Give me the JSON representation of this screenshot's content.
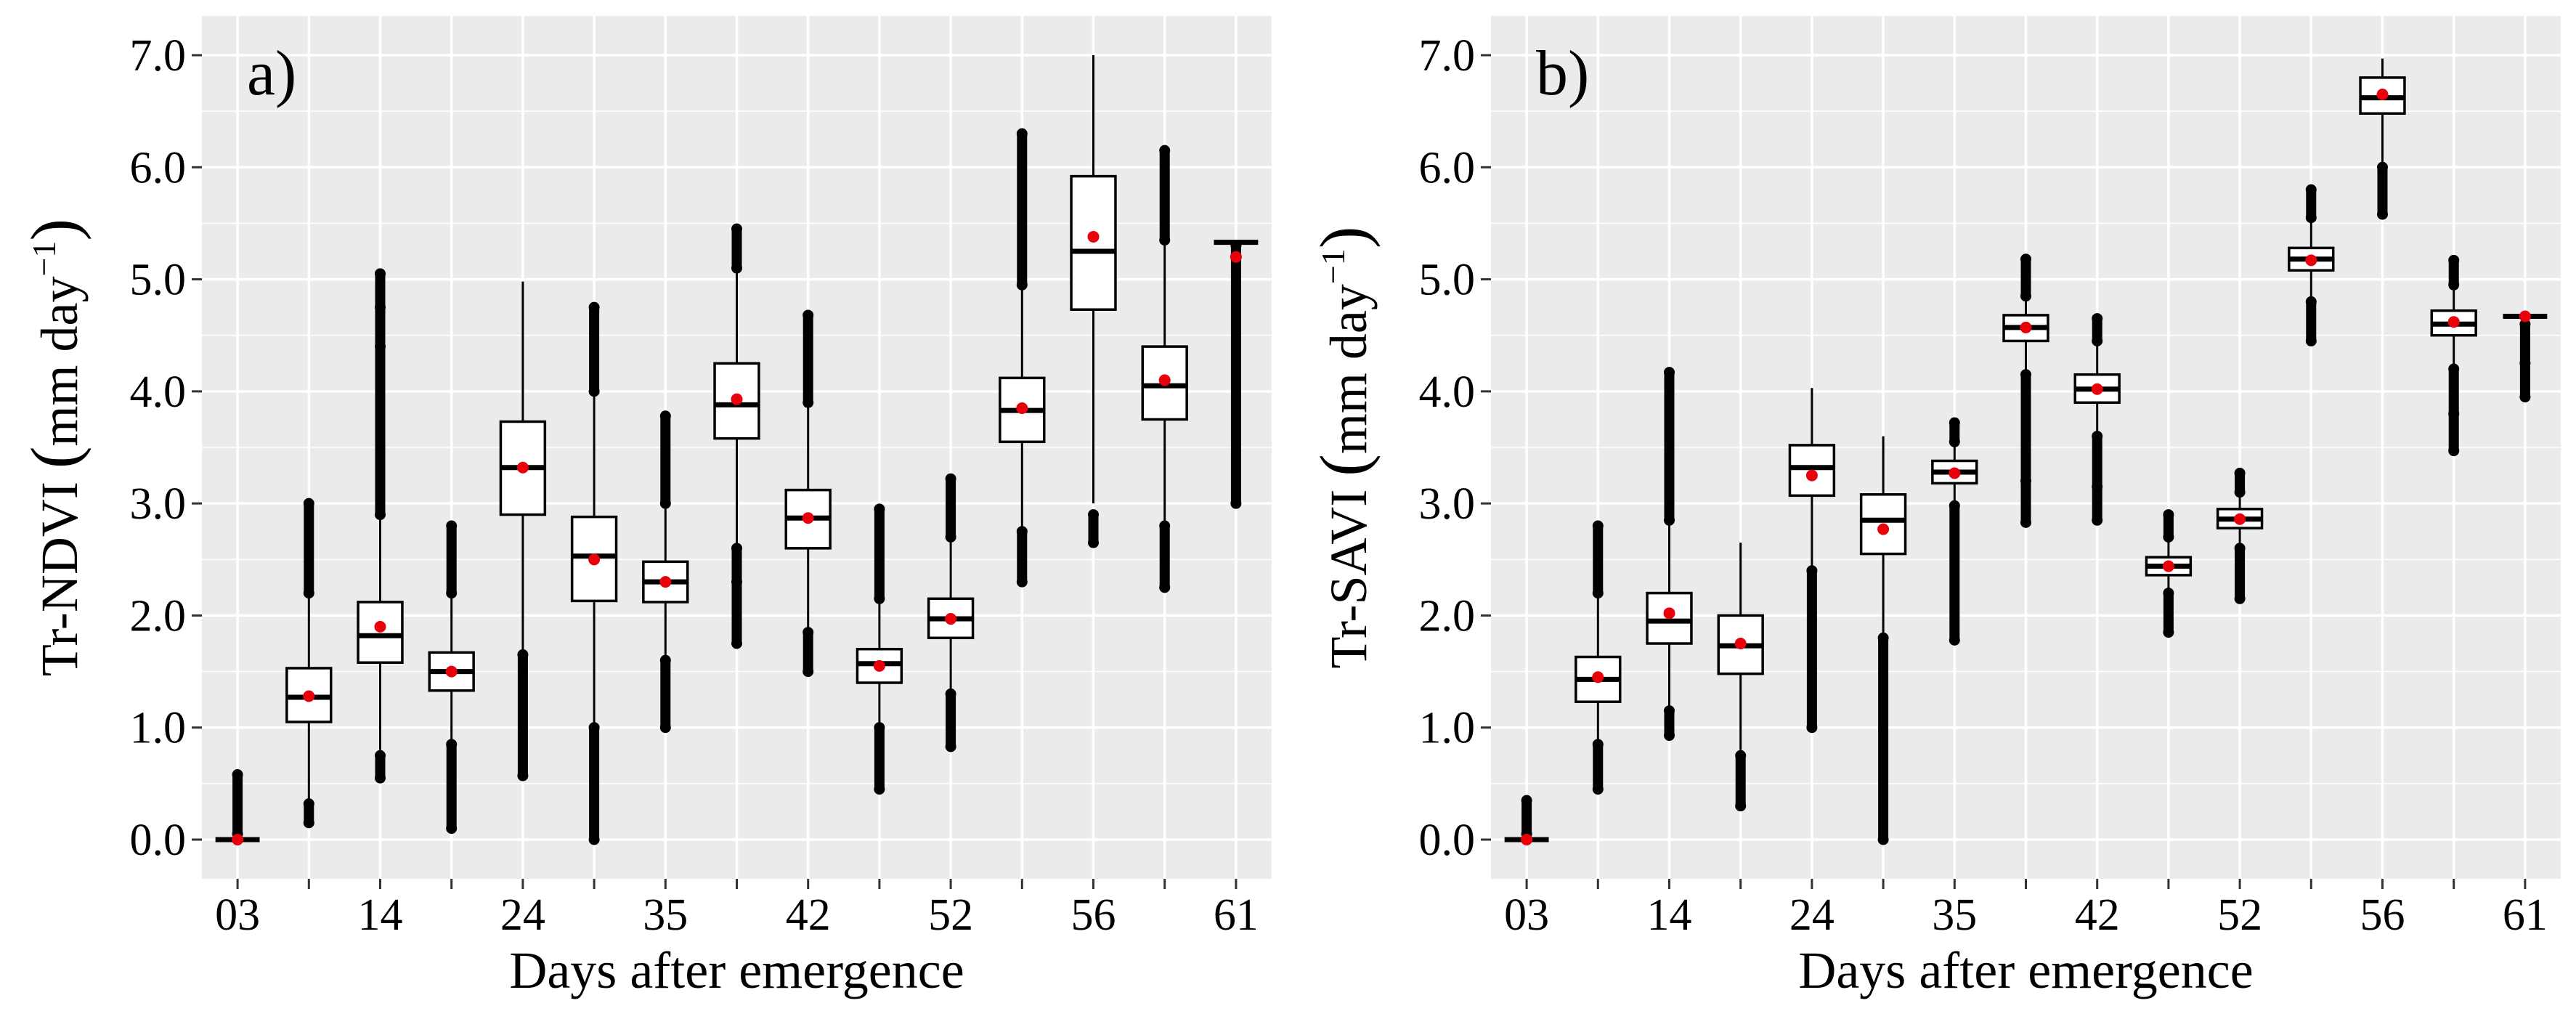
{
  "chart_data": [
    {
      "type": "box",
      "panel_label": "a)",
      "ylabel_main": "Tr-NDVI",
      "ylabel_paren_open": "(",
      "ylabel_unit_prefix": "mm day",
      "ylabel_exponent": "−1",
      "ylabel_paren_close": ")",
      "xlabel": "Days after emergence",
      "ylim": [
        -0.35,
        7.35
      ],
      "y_ticks": [
        0,
        1,
        2,
        3,
        4,
        5,
        6,
        7
      ],
      "y_tick_labels": [
        "0.0",
        "1.0",
        "2.0",
        "3.0",
        "4.0",
        "5.0",
        "6.0",
        "7.0"
      ],
      "x_tick_labels": [
        "03",
        "",
        "14",
        "",
        "24",
        "",
        "35",
        "",
        "42",
        "",
        "52",
        "",
        "56",
        "",
        "61"
      ],
      "grid": true,
      "boxes": [
        {
          "q1": 0.0,
          "median": 0.0,
          "q3": 0.0,
          "whisker_low": 0.0,
          "whisker_high": 0.0,
          "mean": 0.0,
          "outliers_low": [],
          "outliers_high": [
            0.05,
            0.58
          ]
        },
        {
          "q1": 1.05,
          "median": 1.27,
          "q3": 1.53,
          "whisker_low": 0.35,
          "whisker_high": 2.2,
          "mean": 1.28,
          "outliers_low": [
            0.15,
            0.32
          ],
          "outliers_high": [
            2.2,
            3.0
          ]
        },
        {
          "q1": 1.58,
          "median": 1.82,
          "q3": 2.12,
          "whisker_low": 0.8,
          "whisker_high": 2.9,
          "mean": 1.9,
          "outliers_low": [
            0.55,
            0.75
          ],
          "outliers_high": [
            2.9,
            4.4,
            4.75,
            5.05
          ]
        },
        {
          "q1": 1.33,
          "median": 1.5,
          "q3": 1.67,
          "whisker_low": 0.85,
          "whisker_high": 2.2,
          "mean": 1.5,
          "outliers_low": [
            0.1,
            0.85
          ],
          "outliers_high": [
            2.2,
            2.8
          ]
        },
        {
          "q1": 2.9,
          "median": 3.32,
          "q3": 3.73,
          "whisker_low": 1.65,
          "whisker_high": 4.98,
          "mean": 3.32,
          "outliers_low": [
            0.57,
            1.65
          ],
          "outliers_high": []
        },
        {
          "q1": 2.13,
          "median": 2.53,
          "q3": 2.88,
          "whisker_low": 1.0,
          "whisker_high": 4.0,
          "mean": 2.5,
          "outliers_low": [
            0.0,
            1.0
          ],
          "outliers_high": [
            4.0,
            4.75
          ]
        },
        {
          "q1": 2.12,
          "median": 2.3,
          "q3": 2.48,
          "whisker_low": 1.6,
          "whisker_high": 3.0,
          "mean": 2.3,
          "outliers_low": [
            1.0,
            1.6
          ],
          "outliers_high": [
            3.0,
            3.78
          ]
        },
        {
          "q1": 3.58,
          "median": 3.88,
          "q3": 4.25,
          "whisker_low": 2.6,
          "whisker_high": 5.1,
          "mean": 3.93,
          "outliers_low": [
            1.75,
            2.3,
            2.6
          ],
          "outliers_high": [
            5.1,
            5.45
          ]
        },
        {
          "q1": 2.6,
          "median": 2.87,
          "q3": 3.12,
          "whisker_low": 1.85,
          "whisker_high": 3.9,
          "mean": 2.87,
          "outliers_low": [
            1.5,
            1.85
          ],
          "outliers_high": [
            3.9,
            4.68
          ]
        },
        {
          "q1": 1.4,
          "median": 1.57,
          "q3": 1.7,
          "whisker_low": 1.0,
          "whisker_high": 2.15,
          "mean": 1.55,
          "outliers_low": [
            0.45,
            1.0
          ],
          "outliers_high": [
            2.15,
            2.95
          ]
        },
        {
          "q1": 1.8,
          "median": 1.97,
          "q3": 2.15,
          "whisker_low": 1.3,
          "whisker_high": 2.7,
          "mean": 1.97,
          "outliers_low": [
            0.83,
            1.3
          ],
          "outliers_high": [
            2.7,
            3.22
          ]
        },
        {
          "q1": 3.55,
          "median": 3.83,
          "q3": 4.12,
          "whisker_low": 2.75,
          "whisker_high": 4.95,
          "mean": 3.85,
          "outliers_low": [
            2.3,
            2.75
          ],
          "outliers_high": [
            4.95,
            6.3
          ]
        },
        {
          "q1": 4.73,
          "median": 5.25,
          "q3": 5.92,
          "whisker_low": 3.0,
          "whisker_high": 7.0,
          "mean": 5.38,
          "outliers_low": [
            2.65,
            2.9
          ],
          "outliers_high": []
        },
        {
          "q1": 3.75,
          "median": 4.05,
          "q3": 4.4,
          "whisker_low": 2.8,
          "whisker_high": 5.35,
          "mean": 4.1,
          "outliers_low": [
            2.25,
            2.8
          ],
          "outliers_high": [
            5.35,
            6.15
          ]
        },
        {
          "q1": 5.33,
          "median": 5.33,
          "q3": 5.33,
          "whisker_low": 5.33,
          "whisker_high": 5.33,
          "mean": 5.2,
          "outliers_low": [
            3.0,
            5.3
          ],
          "outliers_high": []
        }
      ]
    },
    {
      "type": "box",
      "panel_label": "b)",
      "ylabel_main": "Tr-SAVI",
      "ylabel_paren_open": "(",
      "ylabel_unit_prefix": "mm day",
      "ylabel_exponent": "−1",
      "ylabel_paren_close": ")",
      "xlabel": "Days after emergence",
      "ylim": [
        -0.35,
        7.35
      ],
      "y_ticks": [
        0,
        1,
        2,
        3,
        4,
        5,
        6,
        7
      ],
      "y_tick_labels": [
        "0.0",
        "1.0",
        "2.0",
        "3.0",
        "4.0",
        "5.0",
        "6.0",
        "7.0"
      ],
      "x_tick_labels": [
        "03",
        "",
        "14",
        "",
        "24",
        "",
        "35",
        "",
        "42",
        "",
        "52",
        "",
        "56",
        "",
        "61"
      ],
      "grid": true,
      "boxes": [
        {
          "q1": 0.0,
          "median": 0.0,
          "q3": 0.0,
          "whisker_low": 0.0,
          "whisker_high": 0.0,
          "mean": 0.0,
          "outliers_low": [],
          "outliers_high": [
            0.05,
            0.35
          ]
        },
        {
          "q1": 1.23,
          "median": 1.43,
          "q3": 1.63,
          "whisker_low": 0.85,
          "whisker_high": 2.2,
          "mean": 1.45,
          "outliers_low": [
            0.45,
            0.85
          ],
          "outliers_high": [
            2.2,
            2.8
          ]
        },
        {
          "q1": 1.75,
          "median": 1.95,
          "q3": 2.2,
          "whisker_low": 1.15,
          "whisker_high": 2.85,
          "mean": 2.02,
          "outliers_low": [
            0.93,
            1.15
          ],
          "outliers_high": [
            2.85,
            4.17
          ]
        },
        {
          "q1": 1.48,
          "median": 1.73,
          "q3": 2.0,
          "whisker_low": 0.8,
          "whisker_high": 2.65,
          "mean": 1.75,
          "outliers_low": [
            0.3,
            0.75
          ],
          "outliers_high": []
        },
        {
          "q1": 3.07,
          "median": 3.32,
          "q3": 3.52,
          "whisker_low": 2.4,
          "whisker_high": 4.03,
          "mean": 3.25,
          "outliers_low": [
            1.0,
            2.4
          ],
          "outliers_high": []
        },
        {
          "q1": 2.55,
          "median": 2.85,
          "q3": 3.08,
          "whisker_low": 1.8,
          "whisker_high": 3.6,
          "mean": 2.77,
          "outliers_low": [
            0.0,
            1.8
          ],
          "outliers_high": []
        },
        {
          "q1": 3.18,
          "median": 3.28,
          "q3": 3.38,
          "whisker_low": 2.98,
          "whisker_high": 3.55,
          "mean": 3.27,
          "outliers_low": [
            1.78,
            2.98
          ],
          "outliers_high": [
            3.55,
            3.72
          ]
        },
        {
          "q1": 4.45,
          "median": 4.57,
          "q3": 4.68,
          "whisker_low": 4.15,
          "whisker_high": 4.85,
          "mean": 4.57,
          "outliers_low": [
            2.83,
            3.2,
            4.15
          ],
          "outliers_high": [
            4.85,
            5.18
          ]
        },
        {
          "q1": 3.9,
          "median": 4.02,
          "q3": 4.15,
          "whisker_low": 3.6,
          "whisker_high": 4.45,
          "mean": 4.02,
          "outliers_low": [
            2.85,
            3.15,
            3.6
          ],
          "outliers_high": [
            4.45,
            4.65
          ]
        },
        {
          "q1": 2.36,
          "median": 2.44,
          "q3": 2.52,
          "whisker_low": 2.2,
          "whisker_high": 2.7,
          "mean": 2.44,
          "outliers_low": [
            1.85,
            2.2
          ],
          "outliers_high": [
            2.7,
            2.9
          ]
        },
        {
          "q1": 2.78,
          "median": 2.86,
          "q3": 2.95,
          "whisker_low": 2.6,
          "whisker_high": 3.1,
          "mean": 2.86,
          "outliers_low": [
            2.15,
            2.6
          ],
          "outliers_high": [
            3.1,
            3.27
          ]
        },
        {
          "q1": 5.08,
          "median": 5.18,
          "q3": 5.28,
          "whisker_low": 4.8,
          "whisker_high": 5.55,
          "mean": 5.17,
          "outliers_low": [
            4.45,
            4.8
          ],
          "outliers_high": [
            5.55,
            5.8
          ]
        },
        {
          "q1": 6.48,
          "median": 6.62,
          "q3": 6.8,
          "whisker_low": 6.0,
          "whisker_high": 6.97,
          "mean": 6.65,
          "outliers_low": [
            5.58,
            6.0
          ],
          "outliers_high": []
        },
        {
          "q1": 4.5,
          "median": 4.6,
          "q3": 4.72,
          "whisker_low": 4.2,
          "whisker_high": 4.95,
          "mean": 4.62,
          "outliers_low": [
            3.47,
            3.8,
            4.2
          ],
          "outliers_high": [
            4.95,
            5.17
          ]
        },
        {
          "q1": 4.67,
          "median": 4.67,
          "q3": 4.67,
          "whisker_low": 4.67,
          "whisker_high": 4.67,
          "mean": 4.67,
          "outliers_low": [
            3.95,
            4.25,
            4.6
          ],
          "outliers_high": []
        }
      ]
    }
  ]
}
